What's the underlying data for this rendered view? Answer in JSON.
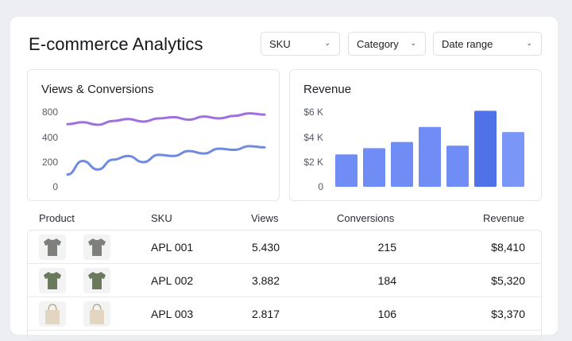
{
  "header": {
    "title": "E-commerce Analytics"
  },
  "filters": [
    {
      "label": "SKU"
    },
    {
      "label": "Category"
    },
    {
      "label": "Date range"
    }
  ],
  "panels": {
    "views": {
      "title": "Views & Conversions"
    },
    "revenue": {
      "title": "Revenue"
    }
  },
  "table": {
    "headers": {
      "product": "Product",
      "sku": "SKU",
      "views": "Views",
      "conversions": "Conversions",
      "revenue": "Revenue"
    },
    "rows": [
      {
        "sku": "APL 001",
        "views": "5.430",
        "conversions": "215",
        "revenue": "$8,410",
        "product_icon": "t-shirt-icon",
        "color": "#7e817b"
      },
      {
        "sku": "APL 002",
        "views": "3.882",
        "conversions": "184",
        "revenue": "$5,320",
        "product_icon": "t-shirt-icon",
        "color": "#6b7a5e"
      },
      {
        "sku": "APL 003",
        "views": "2.817",
        "conversions": "106",
        "revenue": "$3,370",
        "product_icon": "tote-bag-icon",
        "color": "#e2d6c1"
      }
    ]
  },
  "chart_data": [
    {
      "type": "line",
      "title": "Views & Conversions",
      "xlabel": "",
      "ylabel": "",
      "ylim": [
        0,
        800
      ],
      "yticks": [
        "800",
        "400",
        "200",
        "0"
      ],
      "grid": false,
      "series": [
        {
          "color": "#a06ee0",
          "values": [
            610,
            640,
            600,
            660,
            690,
            650,
            700,
            720,
            680,
            730,
            700,
            740,
            780,
            760
          ]
        },
        {
          "color": "#6f8ae0",
          "values": [
            100,
            210,
            140,
            220,
            250,
            200,
            260,
            250,
            290,
            270,
            310,
            300,
            330,
            320
          ]
        }
      ]
    },
    {
      "type": "bar",
      "title": "Revenue",
      "xlabel": "",
      "ylabel": "",
      "ylim": [
        0,
        6000
      ],
      "yticks": [
        "$6 K",
        "$4 K",
        "$2 K",
        "0"
      ],
      "grid": false,
      "values": [
        2600,
        3100,
        3600,
        4800,
        3300,
        6100,
        4400
      ],
      "colors": [
        "#6f8df5",
        "#6f8df5",
        "#6f8df5",
        "#6f8df5",
        "#6f8df5",
        "#4f72e8",
        "#7a97f7"
      ]
    }
  ]
}
